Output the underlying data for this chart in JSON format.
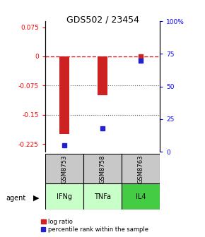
{
  "title": "GDS502 / 23454",
  "samples": [
    "GSM8753",
    "GSM8758",
    "GSM8763"
  ],
  "agents": [
    "IFNg",
    "TNFa",
    "IL4"
  ],
  "x_positions": [
    1,
    2,
    3
  ],
  "log_ratios": [
    -0.2,
    -0.1,
    0.0
  ],
  "percentile_ranks_raw": [
    5,
    18,
    70
  ],
  "ylim_left": [
    -0.245,
    0.09
  ],
  "yticks_left": [
    0.075,
    0.0,
    -0.075,
    -0.15,
    -0.225
  ],
  "ytick_labels_left": [
    "0.075",
    "0",
    "-0.075",
    "-0.15",
    "-0.225"
  ],
  "yticks_right_pct": [
    100,
    75,
    50,
    25,
    0
  ],
  "ytick_labels_right": [
    "100%",
    "75",
    "50",
    "25",
    "0"
  ],
  "bar_color": "#cc2222",
  "dot_color": "#2222cc",
  "sample_box_color": "#c8c8c8",
  "agent_colors": [
    "#c8ffc8",
    "#c8ffc8",
    "#44cc44"
  ],
  "hline_zero_color": "#cc2222",
  "hline_dotted_color": "#555555",
  "legend_red_label": "log ratio",
  "legend_blue_label": "percentile rank within the sample",
  "bar_width": 0.25
}
